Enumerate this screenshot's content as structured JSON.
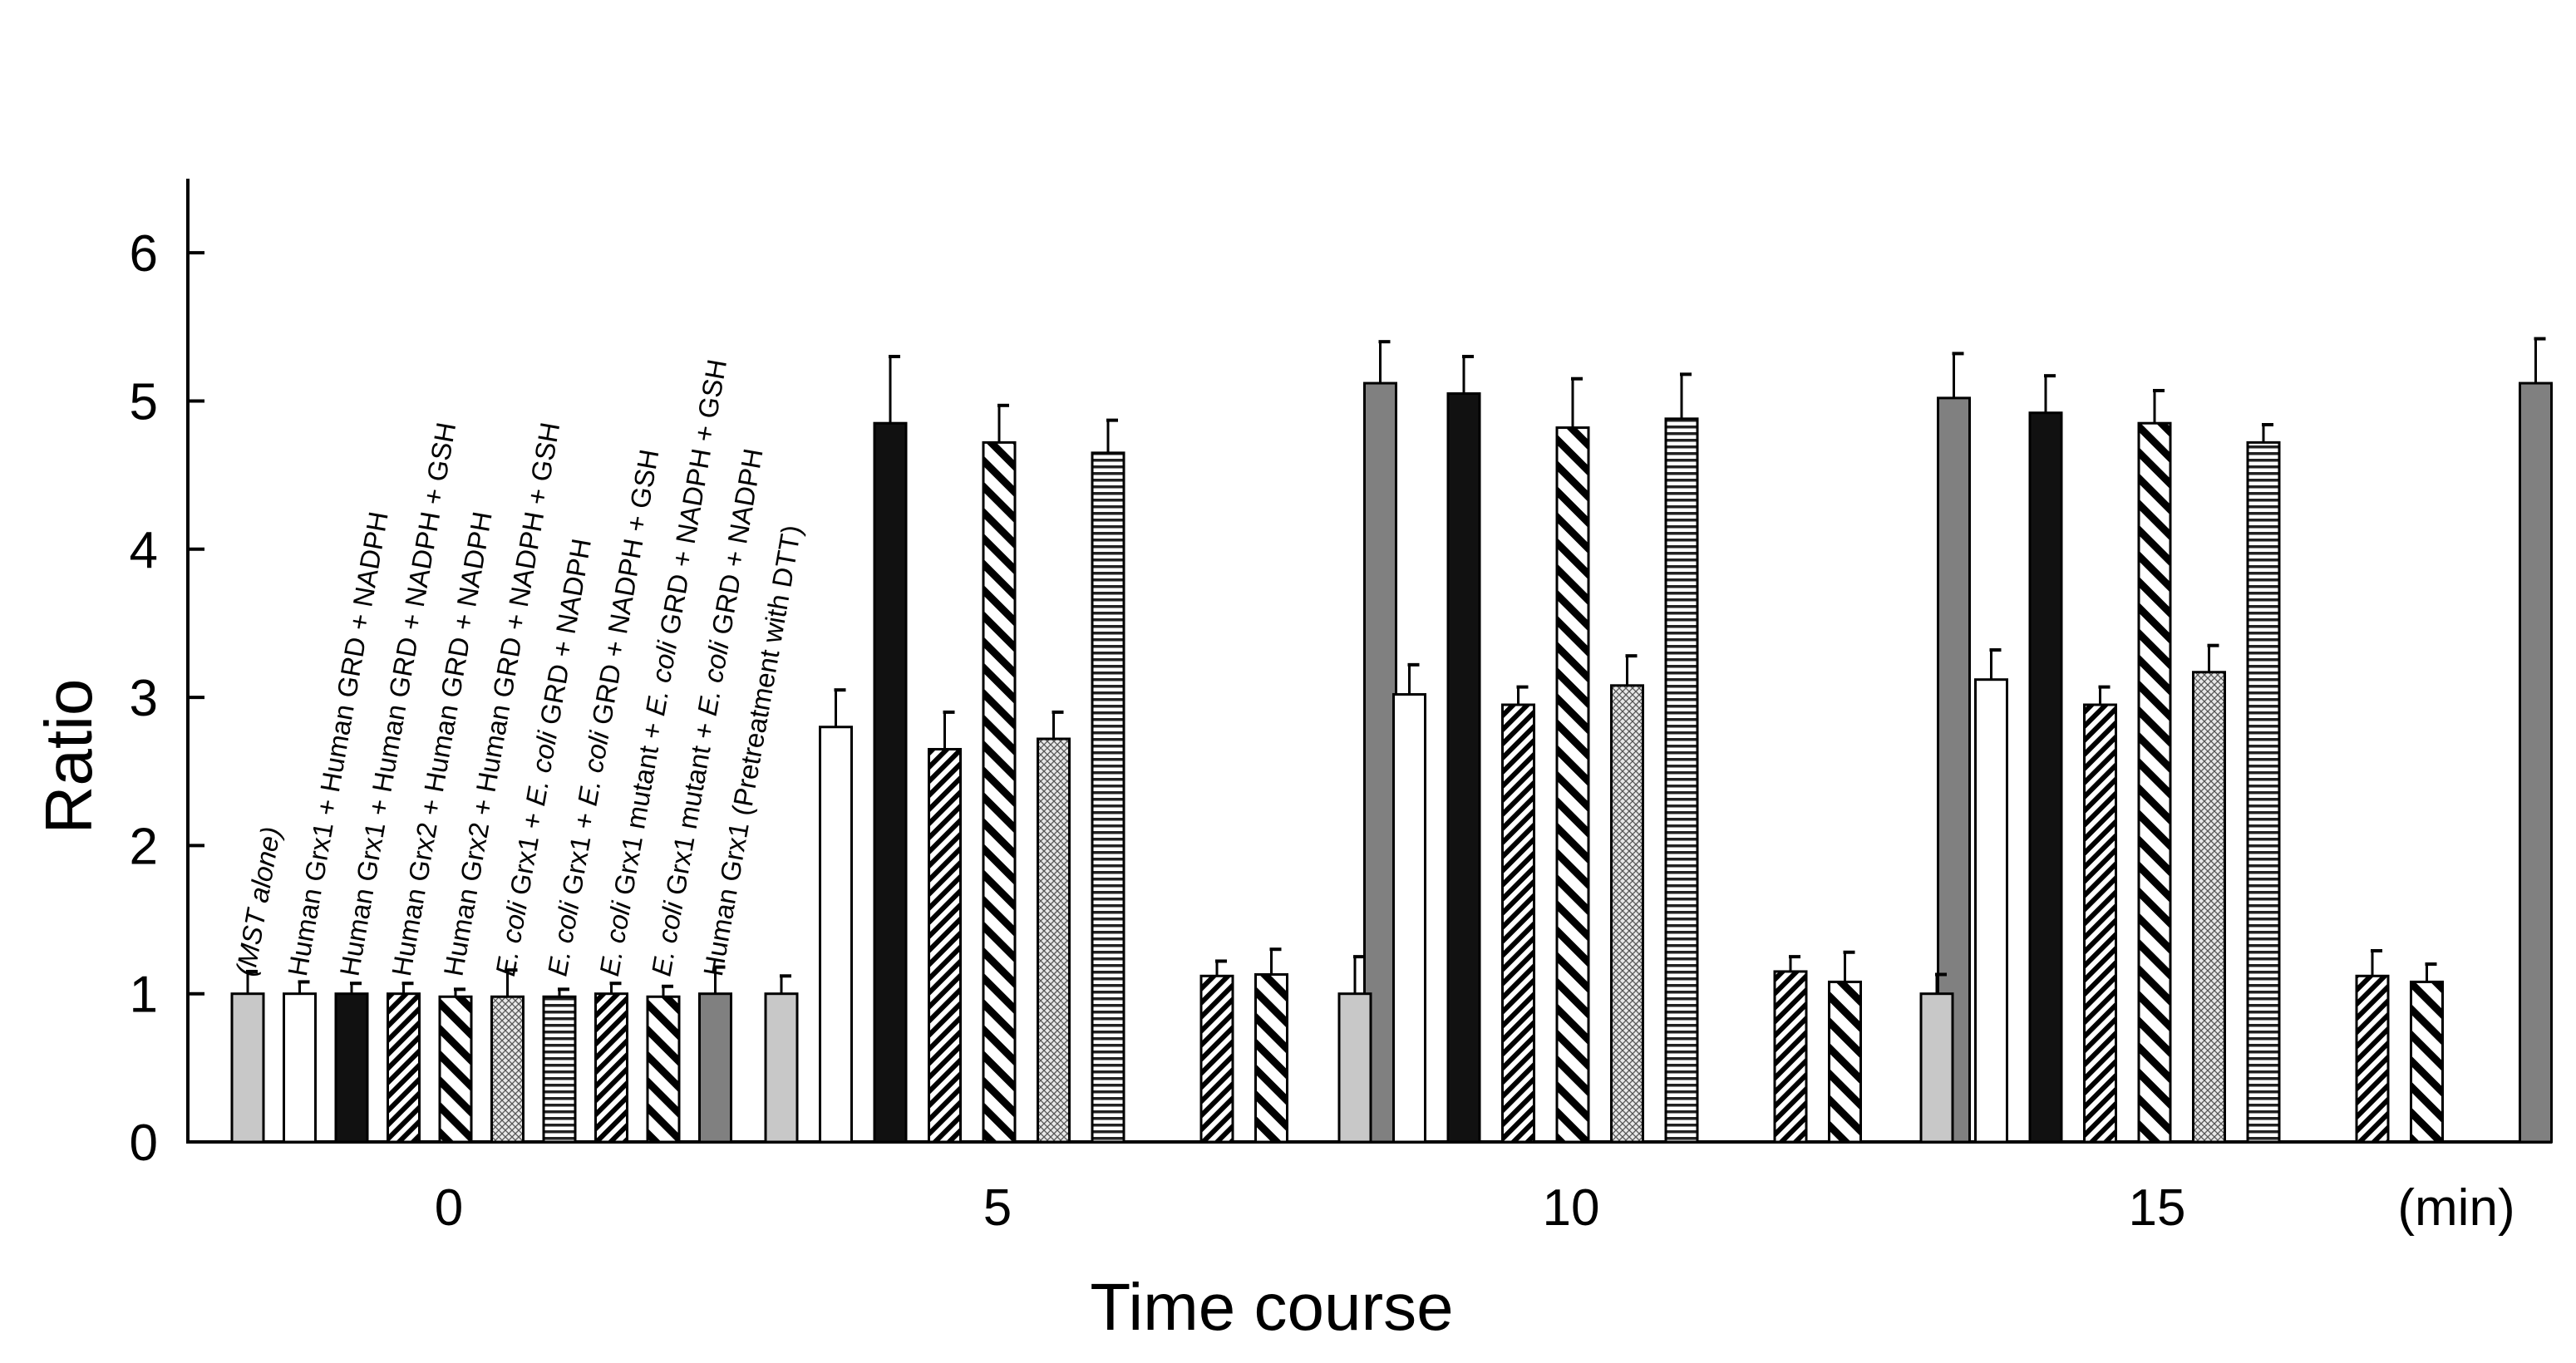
{
  "chart_data": {
    "type": "bar",
    "xlabel": "Time course",
    "ylabel": "Ratio",
    "x_unit_label": "(min)",
    "ylim": [
      0,
      6.5
    ],
    "yticks": [
      "0",
      "1",
      "2",
      "3",
      "4",
      "5",
      "6"
    ],
    "categories": [
      "0",
      "5",
      "10",
      "15"
    ],
    "series": [
      {
        "name": "(MST alone)",
        "italic": true,
        "fill": "lightgray",
        "values": [
          1.0,
          1.0,
          1.0,
          1.0
        ],
        "errors": [
          0.15,
          0.12,
          0.25,
          0.13
        ]
      },
      {
        "name": "Human Grx1 + Human GRD + NADPH",
        "fill": "white",
        "values": [
          1.0,
          2.8,
          3.02,
          3.12
        ],
        "errors": [
          0.08,
          0.25,
          0.2,
          0.2
        ]
      },
      {
        "name": "Human Grx1 + Human GRD + NADPH + GSH",
        "fill": "black",
        "values": [
          1.0,
          4.85,
          5.05,
          4.92
        ],
        "errors": [
          0.07,
          0.45,
          0.25,
          0.25
        ]
      },
      {
        "name": "Human Grx2 + Human GRD + NADPH",
        "fill": "hatch-dense",
        "values": [
          1.0,
          2.65,
          2.95,
          2.95
        ],
        "errors": [
          0.07,
          0.25,
          0.12,
          0.12
        ]
      },
      {
        "name": "Human Grx2 + Human GRD + NADPH + GSH",
        "fill": "hatch-wide",
        "values": [
          0.98,
          4.72,
          4.82,
          4.85
        ],
        "errors": [
          0.05,
          0.25,
          0.33,
          0.22
        ]
      },
      {
        "name": "E. coli Grx1 + E. coli GRD + NADPH",
        "name_italic": "E. coli",
        "fill": "crosshatch",
        "values": [
          0.98,
          2.72,
          3.08,
          3.17
        ],
        "errors": [
          0.18,
          0.18,
          0.2,
          0.18
        ]
      },
      {
        "name": "E. coli Grx1 + E. coli GRD + NADPH + GSH",
        "name_italic": "E. coli",
        "fill": "horizontal",
        "values": [
          0.98,
          4.65,
          4.88,
          4.72
        ],
        "errors": [
          0.05,
          0.22,
          0.3,
          0.12
        ]
      },
      {
        "name": "E. coli Grx1 mutant + E. coli GRD + NADPH + GSH",
        "name_italic": "E. coli",
        "fill": "hatch-dense",
        "values": [
          1.0,
          1.12,
          1.15,
          1.12
        ],
        "errors": [
          0.07,
          0.1,
          0.1,
          0.17
        ]
      },
      {
        "name": "E. coli Grx1 mutant + E. coli GRD + NADPH",
        "name_italic": "E. coli",
        "fill": "hatch-wide",
        "values": [
          0.98,
          1.13,
          1.08,
          1.08
        ],
        "errors": [
          0.07,
          0.17,
          0.2,
          0.12
        ]
      },
      {
        "name": "Human Grx1 (Pretreatment with DTT)",
        "fill": "gray",
        "values": [
          1.0,
          5.12,
          5.02,
          5.12
        ],
        "errors": [
          0.18,
          0.28,
          0.3,
          0.3
        ]
      }
    ],
    "missing_bars_note": "At 5, 10 and 15 min only series 1, 2, 3, 4, 5, 6, 7, 8, 9, 10 are drawn where present; series 8 and 9 share positions after series 7 gap",
    "legend_placement": "rotated labels above the first group"
  }
}
